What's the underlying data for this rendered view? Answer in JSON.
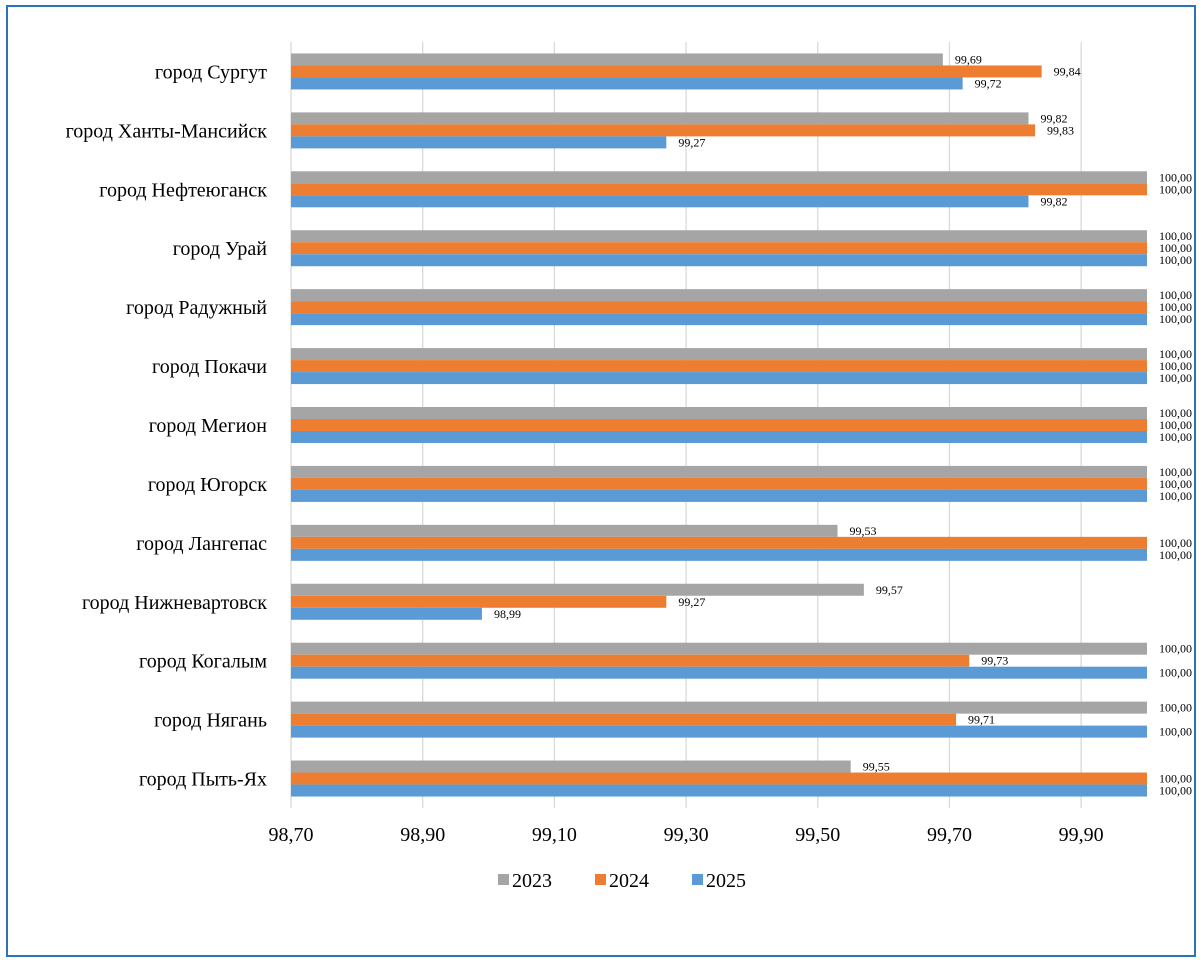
{
  "chart_data": {
    "type": "bar",
    "orientation": "horizontal",
    "categories": [
      "город Сургут",
      "город Ханты-Мансийск",
      "город Нефтеюганск",
      "город Урай",
      "город Радужный",
      "город Покачи",
      "город Мегион",
      "город Югорск",
      "город Лангепас",
      "город Нижневартовск",
      "город Когалым",
      "город Нягань",
      "город Пыть-Ях"
    ],
    "series": [
      {
        "name": "2023",
        "color": "#a5a5a5",
        "values": [
          99.69,
          99.82,
          100.0,
          100.0,
          100.0,
          100.0,
          100.0,
          100.0,
          99.53,
          99.57,
          100.0,
          100.0,
          99.55
        ],
        "labels": [
          "99,69",
          "99,82",
          "100,00",
          "100,00",
          "100,00",
          "100,00",
          "100,00",
          "100,00",
          "99,53",
          "99,57",
          "100,00",
          "100,00",
          "99,55"
        ]
      },
      {
        "name": "2024",
        "color": "#ed7d31",
        "values": [
          99.84,
          99.83,
          100.0,
          100.0,
          100.0,
          100.0,
          100.0,
          100.0,
          100.0,
          99.27,
          99.73,
          99.71,
          100.0
        ],
        "labels": [
          "99,84",
          "99,83",
          "100,00",
          "100,00",
          "100,00",
          "100,00",
          "100,00",
          "100,00",
          "100,00",
          "99,27",
          "99,73",
          "99,71",
          "100,00"
        ]
      },
      {
        "name": "2025",
        "color": "#5b9bd5",
        "values": [
          99.72,
          99.27,
          99.82,
          100.0,
          100.0,
          100.0,
          100.0,
          100.0,
          100.0,
          98.99,
          100.0,
          100.0,
          100.0
        ],
        "labels": [
          "99,72",
          "99,27",
          "99,82",
          "100,00",
          "100,00",
          "100,00",
          "100,00",
          "100,00",
          "100,00",
          "98,99",
          "100,00",
          "100,00",
          "100,00"
        ]
      }
    ],
    "xlim": [
      98.7,
      100.0
    ],
    "xticks": [
      98.7,
      98.9,
      99.1,
      99.3,
      99.5,
      99.7,
      99.9
    ],
    "xtick_labels": [
      "98,70",
      "98,90",
      "99,10",
      "99,30",
      "99,50",
      "99,70",
      "99,90"
    ],
    "grid": "vertical",
    "legend_position": "bottom",
    "title": "",
    "xlabel": "",
    "ylabel": ""
  }
}
